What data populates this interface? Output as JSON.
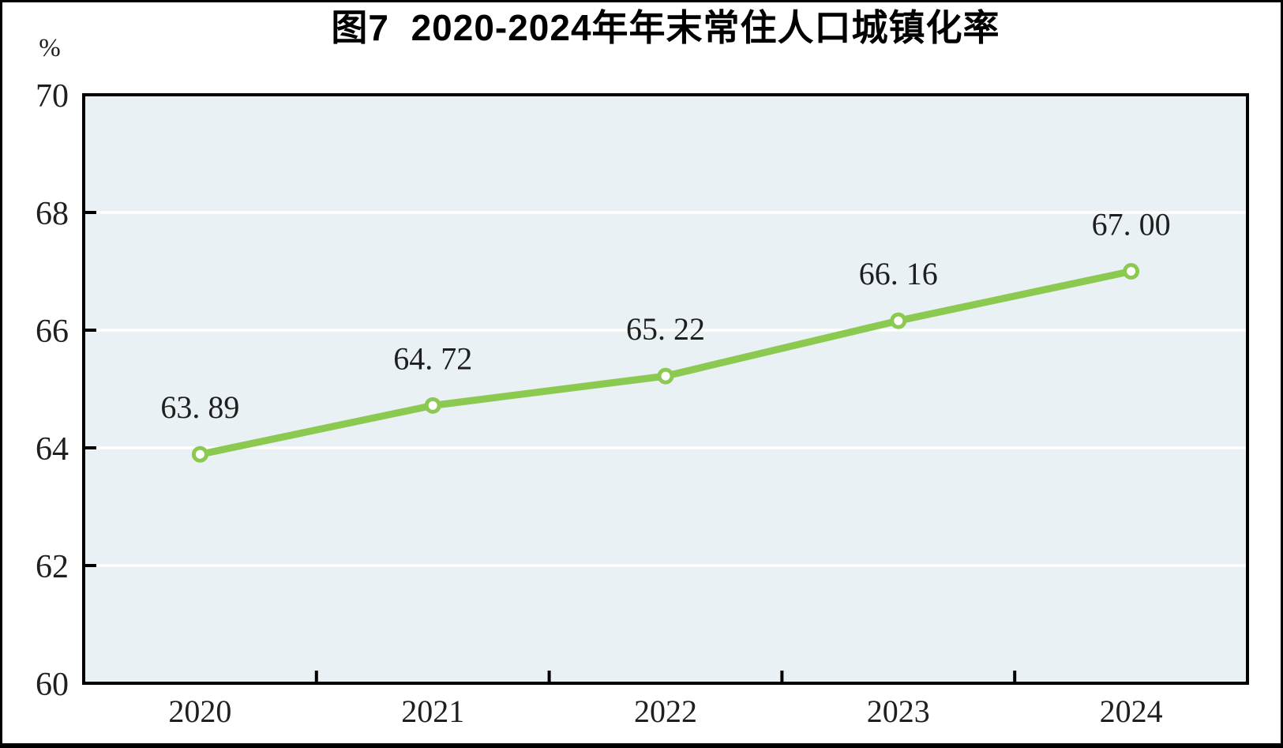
{
  "chart_data": {
    "type": "line",
    "title": "图7  2020-2024年年末常住人口城镇化率",
    "unit": "%",
    "categories": [
      "2020",
      "2021",
      "2022",
      "2023",
      "2024"
    ],
    "series": [
      {
        "name": "年末常住人口城镇化率",
        "values": [
          63.89,
          64.72,
          65.22,
          66.16,
          67.0
        ]
      }
    ],
    "point_labels": [
      "63. 89",
      "64. 72",
      "65. 22",
      "66. 16",
      "67. 00"
    ],
    "ylim": [
      60,
      70
    ],
    "y_ticks": [
      70,
      68,
      66,
      64,
      62,
      60
    ],
    "gridline_values": [
      68,
      66,
      64,
      62
    ],
    "grid": true,
    "legend": false,
    "colors": {
      "line": "#8cc951",
      "marker_fill": "#ffffff",
      "plot_bg": "#e9f1f5",
      "gridline": "#ffffff",
      "axis": "#000000",
      "text": "#1f1f1f"
    }
  }
}
